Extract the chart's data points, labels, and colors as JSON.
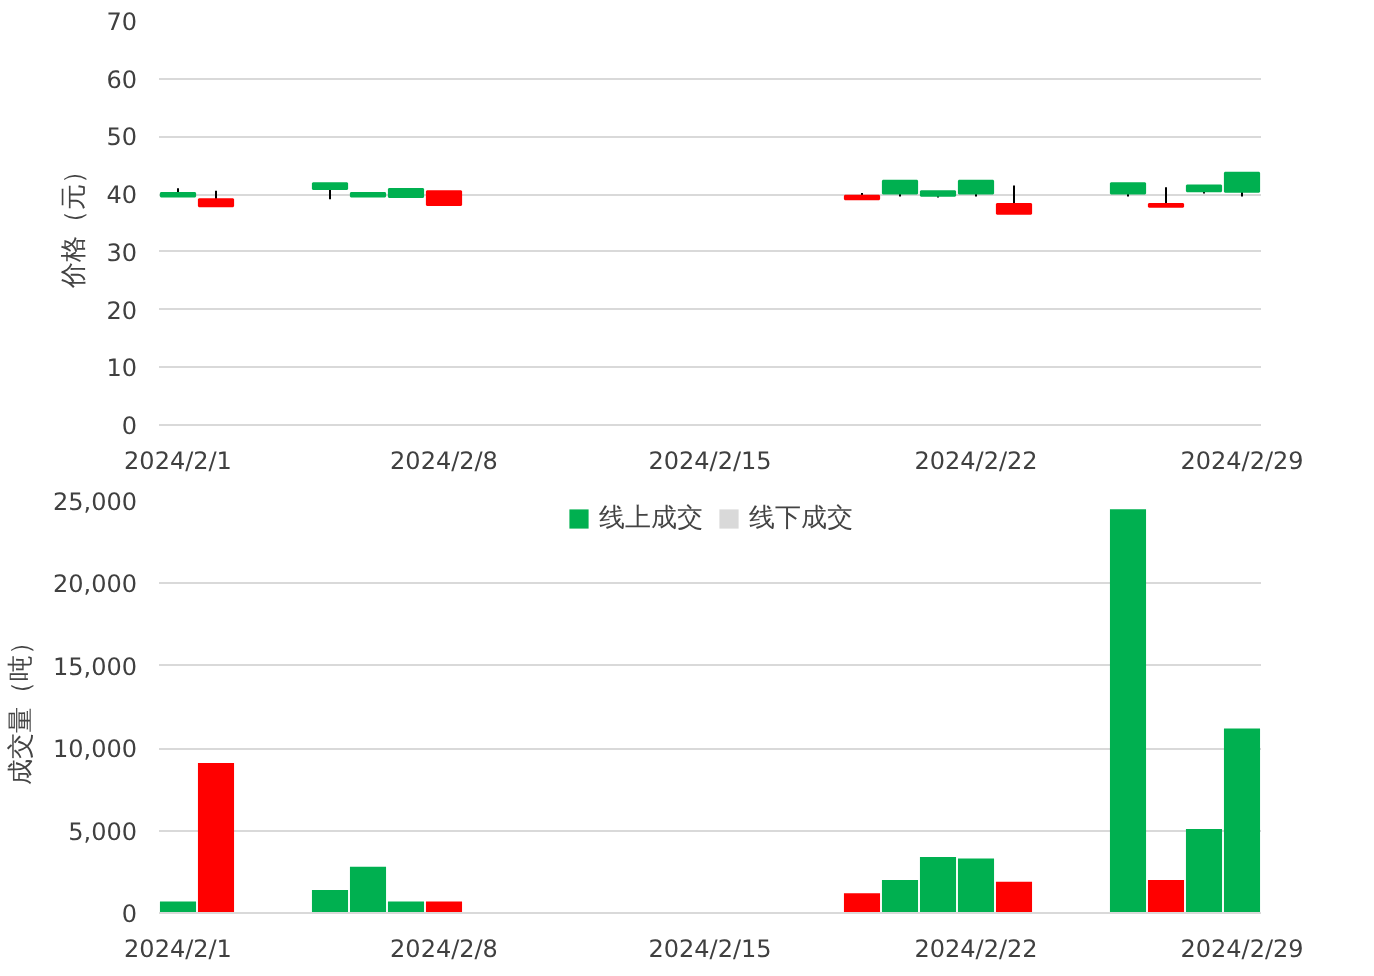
{
  "chart_data": [
    {
      "type": "candlestick",
      "ylabel": "价格（元）",
      "x": [
        "2024-02-01",
        "2024-02-02",
        "2024-02-05",
        "2024-02-06",
        "2024-02-07",
        "2024-02-08",
        "2024-02-19",
        "2024-02-20",
        "2024-02-21",
        "2024-02-22",
        "2024-02-23",
        "2024-02-26",
        "2024-02-27",
        "2024-02-28",
        "2024-02-29"
      ],
      "ohlc": [
        [
          39.6,
          41.0,
          39.6,
          40.2
        ],
        [
          39.1,
          40.6,
          37.9,
          37.9
        ],
        [
          40.9,
          41.9,
          39.1,
          41.9
        ],
        [
          39.6,
          40.2,
          39.6,
          40.2
        ],
        [
          39.5,
          40.9,
          39.5,
          40.9
        ],
        [
          40.5,
          40.5,
          38.1,
          38.1
        ],
        [
          39.7,
          40.2,
          39.1,
          39.1
        ],
        [
          40.1,
          42.3,
          39.6,
          42.3
        ],
        [
          39.7,
          40.5,
          39.4,
          40.5
        ],
        [
          40.1,
          42.3,
          39.6,
          42.3
        ],
        [
          38.3,
          41.5,
          36.6,
          36.6
        ],
        [
          40.1,
          41.9,
          39.6,
          41.9
        ],
        [
          38.3,
          41.2,
          37.8,
          37.8
        ],
        [
          40.5,
          41.5,
          40.1,
          41.5
        ],
        [
          40.4,
          43.7,
          39.6,
          43.7
        ]
      ],
      "colors": [
        "#00b050",
        "#ff0000",
        "#00b050",
        "#00b050",
        "#00b050",
        "#ff0000",
        "#ff0000",
        "#00b050",
        "#00b050",
        "#00b050",
        "#ff0000",
        "#00b050",
        "#ff0000",
        "#00b050",
        "#00b050"
      ],
      "xlim": [
        "2024-01-31T12:00",
        "2024-02-29T12:00"
      ],
      "xticks": [
        {
          "value": "2024-02-01",
          "label": "2024/2/1"
        },
        {
          "value": "2024-02-08",
          "label": "2024/2/8"
        },
        {
          "value": "2024-02-15",
          "label": "2024/2/15"
        },
        {
          "value": "2024-02-22",
          "label": "2024/2/22"
        },
        {
          "value": "2024-02-29",
          "label": "2024/2/29"
        }
      ],
      "ylim": [
        0,
        70
      ],
      "yticks": [
        0,
        10,
        20,
        30,
        40,
        50,
        60,
        70
      ],
      "grid": "y"
    },
    {
      "type": "bar",
      "ylabel": "成交量（吨）",
      "stacked": true,
      "x": [
        "2024-02-01",
        "2024-02-02",
        "2024-02-05",
        "2024-02-06",
        "2024-02-07",
        "2024-02-08",
        "2024-02-19",
        "2024-02-20",
        "2024-02-21",
        "2024-02-22",
        "2024-02-23",
        "2024-02-26",
        "2024-02-27",
        "2024-02-28",
        "2024-02-29"
      ],
      "series": [
        {
          "name": "线上成交",
          "color": "#00b050",
          "colors": [
            "#00b050",
            "#ff0000",
            "#00b050",
            "#00b050",
            "#00b050",
            "#ff0000",
            "#ff0000",
            "#00b050",
            "#00b050",
            "#00b050",
            "#ff0000",
            "#00b050",
            "#ff0000",
            "#00b050",
            "#00b050"
          ],
          "values": [
            700,
            9100,
            1400,
            2800,
            700,
            700,
            1200,
            2000,
            3400,
            3300,
            1900,
            24500,
            2000,
            5100,
            11200
          ]
        },
        {
          "name": "线下成交",
          "color": "#d9d9d9",
          "values": [
            null,
            null,
            null,
            null,
            null,
            null,
            null,
            null,
            null,
            null,
            null,
            null,
            null,
            null,
            null
          ]
        }
      ],
      "xlim": [
        "2024-01-31T12:00",
        "2024-02-29T12:00"
      ],
      "xticks": [
        {
          "value": "2024-02-01",
          "label": "2024/2/1"
        },
        {
          "value": "2024-02-08",
          "label": "2024/2/8"
        },
        {
          "value": "2024-02-15",
          "label": "2024/2/15"
        },
        {
          "value": "2024-02-22",
          "label": "2024/2/22"
        },
        {
          "value": "2024-02-29",
          "label": "2024/2/29"
        }
      ],
      "ylim": [
        0,
        25000
      ],
      "yticks": [
        0,
        {
          "value": 5000,
          "label": "5,000"
        },
        {
          "value": 10000,
          "label": "10,000"
        },
        {
          "value": 15000,
          "label": "15,000"
        },
        {
          "value": 20000,
          "label": "20,000"
        },
        {
          "value": 25000,
          "label": "25,000"
        }
      ],
      "grid": "y",
      "legend": "top"
    }
  ]
}
